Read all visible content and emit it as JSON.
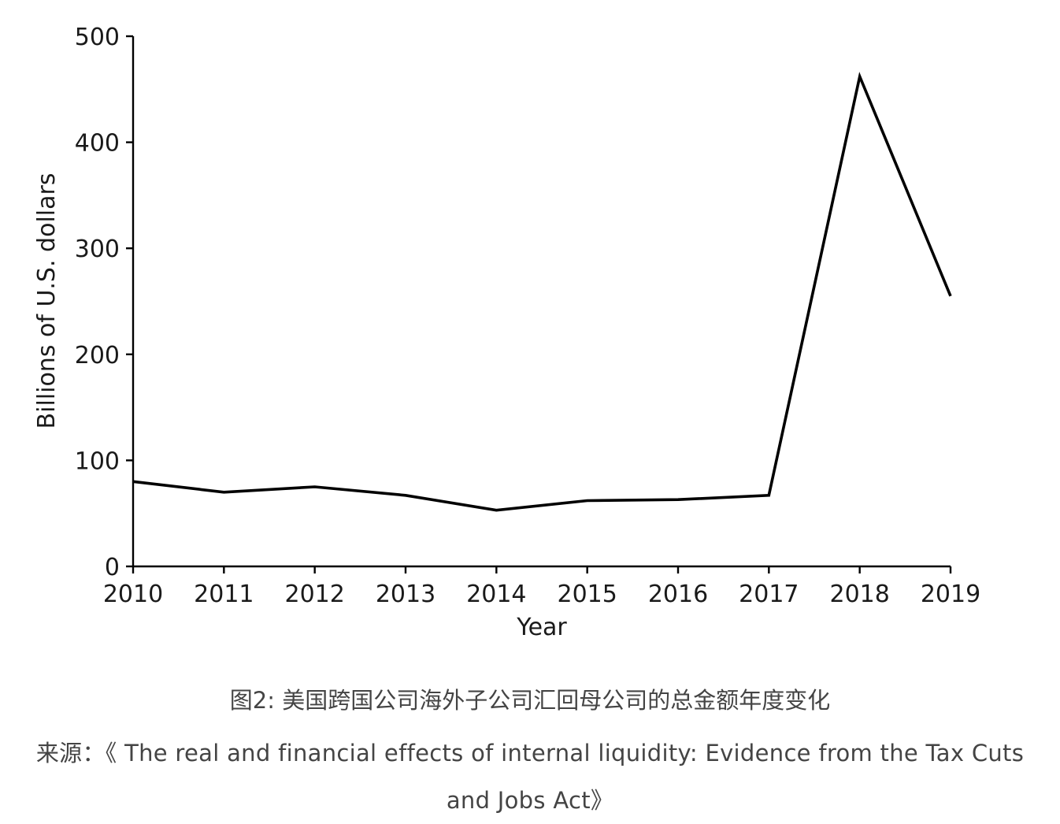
{
  "chart_data": {
    "type": "line",
    "title": "",
    "xlabel": "Year",
    "ylabel": "Billions of U.S. dollars",
    "x": [
      2010,
      2011,
      2012,
      2013,
      2014,
      2015,
      2016,
      2017,
      2018,
      2019
    ],
    "series": [
      {
        "values": [
          80,
          70,
          75,
          67,
          53,
          62,
          63,
          67,
          462,
          255
        ]
      }
    ],
    "xlim": [
      2010,
      2019
    ],
    "ylim": [
      0,
      500
    ],
    "yticks": [
      0,
      100,
      200,
      300,
      400,
      500
    ],
    "xtick_labels": [
      "2010",
      "2011",
      "2012",
      "2013",
      "2014",
      "2015",
      "2016",
      "2017",
      "2018",
      "2019"
    ],
    "ytick_labels": [
      "0",
      "100",
      "200",
      "300",
      "400",
      "500"
    ],
    "grid": false,
    "line_color": "#000000"
  },
  "caption": {
    "title": "图2: 美国跨国公司海外子公司汇回母公司的总金额年度变化",
    "source_line1": "来源：《 The real and financial effects of internal liquidity: Evidence from the Tax Cuts",
    "source_line2": "and Jobs Act》"
  }
}
